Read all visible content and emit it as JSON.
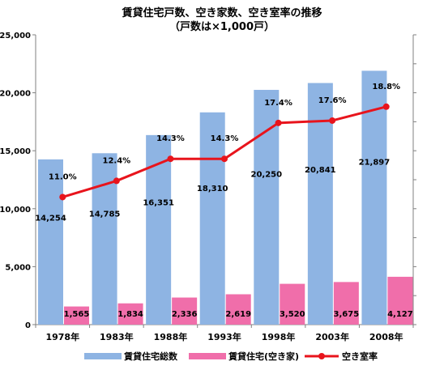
{
  "chart_data": {
    "type": "bar",
    "title": "賃貸住宅戸数、空き家数、空き室率の推移",
    "subtitle": "（戸数は×1,000戸）",
    "categories": [
      "1978年",
      "1983年",
      "1988年",
      "1993年",
      "1998年",
      "2003年",
      "2008年"
    ],
    "series": [
      {
        "name": "賃貸住宅総数",
        "type": "bar",
        "color": "#8eb4e3",
        "values": [
          14254,
          14785,
          16351,
          18310,
          20250,
          20841,
          21897
        ],
        "labels": [
          "14,254",
          "14,785",
          "16,351",
          "18,310",
          "20,250",
          "20,841",
          "21,897"
        ]
      },
      {
        "name": "賃貸住宅(空き家)",
        "type": "bar",
        "color": "#f06eaa",
        "values": [
          1565,
          1834,
          2336,
          2619,
          3520,
          3675,
          4127
        ],
        "labels": [
          "1,565",
          "1,834",
          "2,336",
          "2,619",
          "3,520",
          "3,675",
          "4,127"
        ]
      },
      {
        "name": "空き室率",
        "type": "line",
        "color": "#e8141c",
        "values": [
          11.0,
          12.4,
          14.3,
          14.3,
          17.4,
          17.6,
          18.8
        ],
        "labels": [
          "11.0%",
          "12.4%",
          "14.3%",
          "14.3%",
          "17.4%",
          "17.6%",
          "18.8%"
        ]
      }
    ],
    "y_ticks": [
      "0",
      "5,000",
      "10,000",
      "15,000",
      "20,000",
      "25,000"
    ],
    "ylim": [
      0,
      25000
    ],
    "y2lim": [
      0,
      25
    ],
    "grid": false,
    "legend": "bottom"
  }
}
